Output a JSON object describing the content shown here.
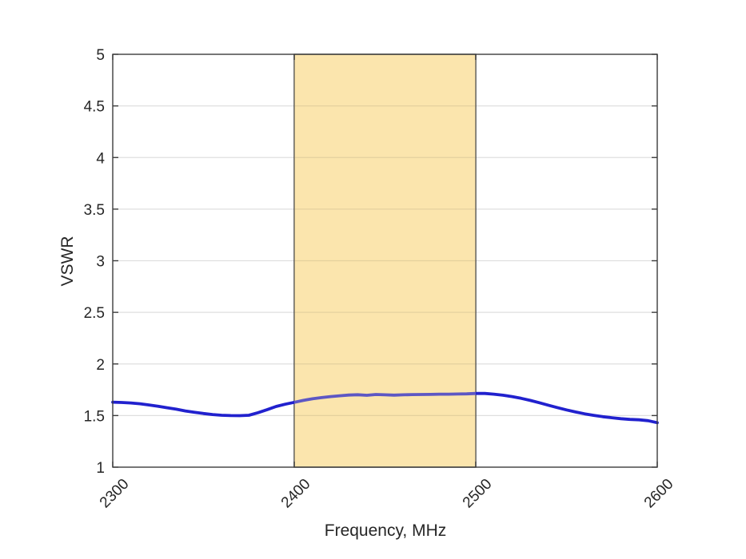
{
  "figure": {
    "background": "#ffffff"
  },
  "chart_data": {
    "type": "line",
    "title": "",
    "xlabel": "Frequency, MHz",
    "ylabel": "VSWR",
    "xlim": [
      2300,
      2600
    ],
    "ylim": [
      1,
      5
    ],
    "xticks": [
      2300,
      2400,
      2500,
      2600
    ],
    "yticks": [
      1,
      1.5,
      2,
      2.5,
      3,
      3.5,
      4,
      4.5,
      5
    ],
    "grid": "horizontal",
    "grid_color": "rgba(38,38,38,0.15)",
    "axis_color": "#3c3c3c",
    "band": {
      "name": "highlighted-band-2400-2500",
      "x0": 2400,
      "x1": 2500,
      "fill": "#FBE5AD",
      "edge": "#4A4A4A",
      "tint": "rgba(251,229,173,0.28)"
    },
    "series": [
      {
        "name": "VSWR",
        "color": "#2121CE",
        "x": [
          2300,
          2305,
          2310,
          2315,
          2320,
          2325,
          2330,
          2335,
          2340,
          2345,
          2350,
          2355,
          2360,
          2365,
          2370,
          2375,
          2380,
          2385,
          2390,
          2395,
          2400,
          2405,
          2410,
          2415,
          2420,
          2425,
          2430,
          2435,
          2440,
          2445,
          2450,
          2455,
          2460,
          2465,
          2470,
          2475,
          2480,
          2485,
          2490,
          2495,
          2500,
          2505,
          2510,
          2515,
          2520,
          2525,
          2530,
          2535,
          2540,
          2545,
          2550,
          2555,
          2560,
          2565,
          2570,
          2575,
          2580,
          2585,
          2590,
          2595,
          2600
        ],
        "y": [
          1.63,
          1.627,
          1.622,
          1.614,
          1.603,
          1.59,
          1.576,
          1.562,
          1.545,
          1.532,
          1.52,
          1.51,
          1.503,
          1.5,
          1.499,
          1.503,
          1.528,
          1.556,
          1.588,
          1.61,
          1.628,
          1.647,
          1.662,
          1.674,
          1.684,
          1.692,
          1.699,
          1.702,
          1.696,
          1.704,
          1.701,
          1.698,
          1.701,
          1.703,
          1.704,
          1.705,
          1.707,
          1.707,
          1.709,
          1.71,
          1.714,
          1.714,
          1.707,
          1.697,
          1.684,
          1.667,
          1.647,
          1.624,
          1.6,
          1.577,
          1.555,
          1.535,
          1.517,
          1.502,
          1.489,
          1.479,
          1.47,
          1.463,
          1.459,
          1.45,
          1.431
        ]
      }
    ]
  }
}
